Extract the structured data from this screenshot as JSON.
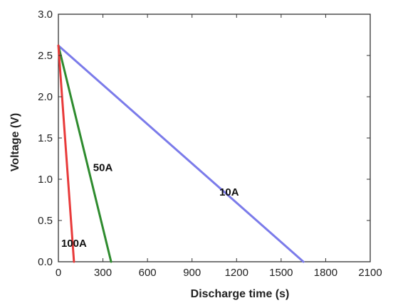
{
  "chart_data": {
    "type": "line",
    "title": "",
    "xlabel": "Discharge time (s)",
    "ylabel": "Voltage (V)",
    "xlim": [
      0,
      2100
    ],
    "ylim": [
      0.0,
      3.0
    ],
    "xticks": [
      0,
      300,
      600,
      900,
      1200,
      1500,
      1800,
      2100
    ],
    "yticks": [
      0.0,
      0.5,
      1.0,
      1.5,
      2.0,
      2.5,
      3.0
    ],
    "xtick_labels": [
      "0",
      "300",
      "600",
      "900",
      "1200",
      "1500",
      "1800",
      "2100"
    ],
    "ytick_labels": [
      "0.0",
      "0.5",
      "1.0",
      "1.5",
      "2.0",
      "2.5",
      "3.0"
    ],
    "grid": false,
    "legend": "none",
    "series": [
      {
        "name": "10A",
        "color": "#7b7bea",
        "x": [
          0,
          1650
        ],
        "y": [
          2.62,
          0.0
        ],
        "label_pos": {
          "x": 1150,
          "y": 0.8
        }
      },
      {
        "name": "50A",
        "color": "#2e8b2e",
        "x": [
          0,
          355
        ],
        "y": [
          2.62,
          0.0
        ],
        "label_pos": {
          "x": 300,
          "y": 1.1
        }
      },
      {
        "name": "100A",
        "color": "#e83a3a",
        "x": [
          0,
          105
        ],
        "y": [
          2.62,
          0.0
        ],
        "label_pos": {
          "x": 105,
          "y": 0.18
        }
      }
    ]
  }
}
